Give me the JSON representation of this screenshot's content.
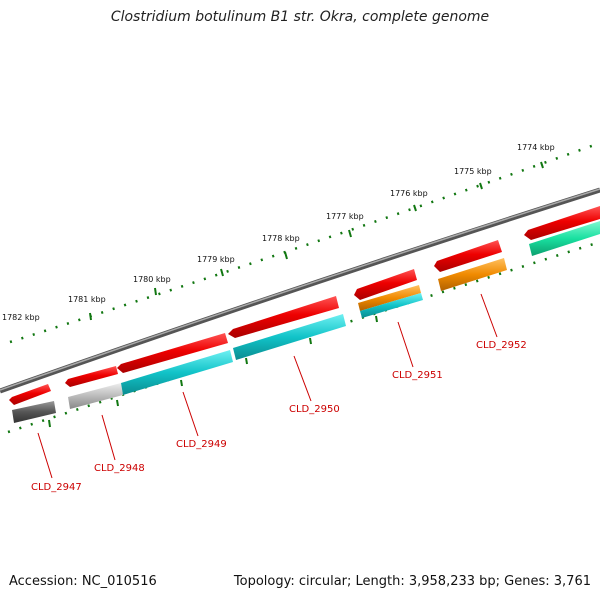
{
  "title": "Clostridium botulinum B1 str. Okra, complete genome",
  "footer": {
    "accession": "Accession: NC_010516",
    "topology": "Topology: circular; Length: 3,958,233 bp; Genes: 3,761"
  },
  "scale_labels": [
    "1774 kbp",
    "1775 kbp",
    "1776 kbp",
    "1777 kbp",
    "1778 kbp",
    "1779 kbp",
    "1780 kbp",
    "1781 kbp",
    "1782 kbp"
  ],
  "genes": [
    {
      "name": "CLD_2947",
      "feature_color": "#555555"
    },
    {
      "name": "CLD_2948",
      "feature_color": "#bbbbbb"
    },
    {
      "name": "CLD_2949",
      "feature_color": "#11c3c8"
    },
    {
      "name": "CLD_2950",
      "feature_color": "#11b8bd"
    },
    {
      "name": "CLD_2951",
      "feature_color": "#ee8c00"
    },
    {
      "name": "CLD_2952",
      "feature_color": "#f08a00"
    }
  ],
  "colors": {
    "cds_arrow": "#ee0000",
    "backbone": "#707070",
    "tick": "#117711",
    "label": "#cc0000",
    "teal_feature": "#19e0a0"
  }
}
